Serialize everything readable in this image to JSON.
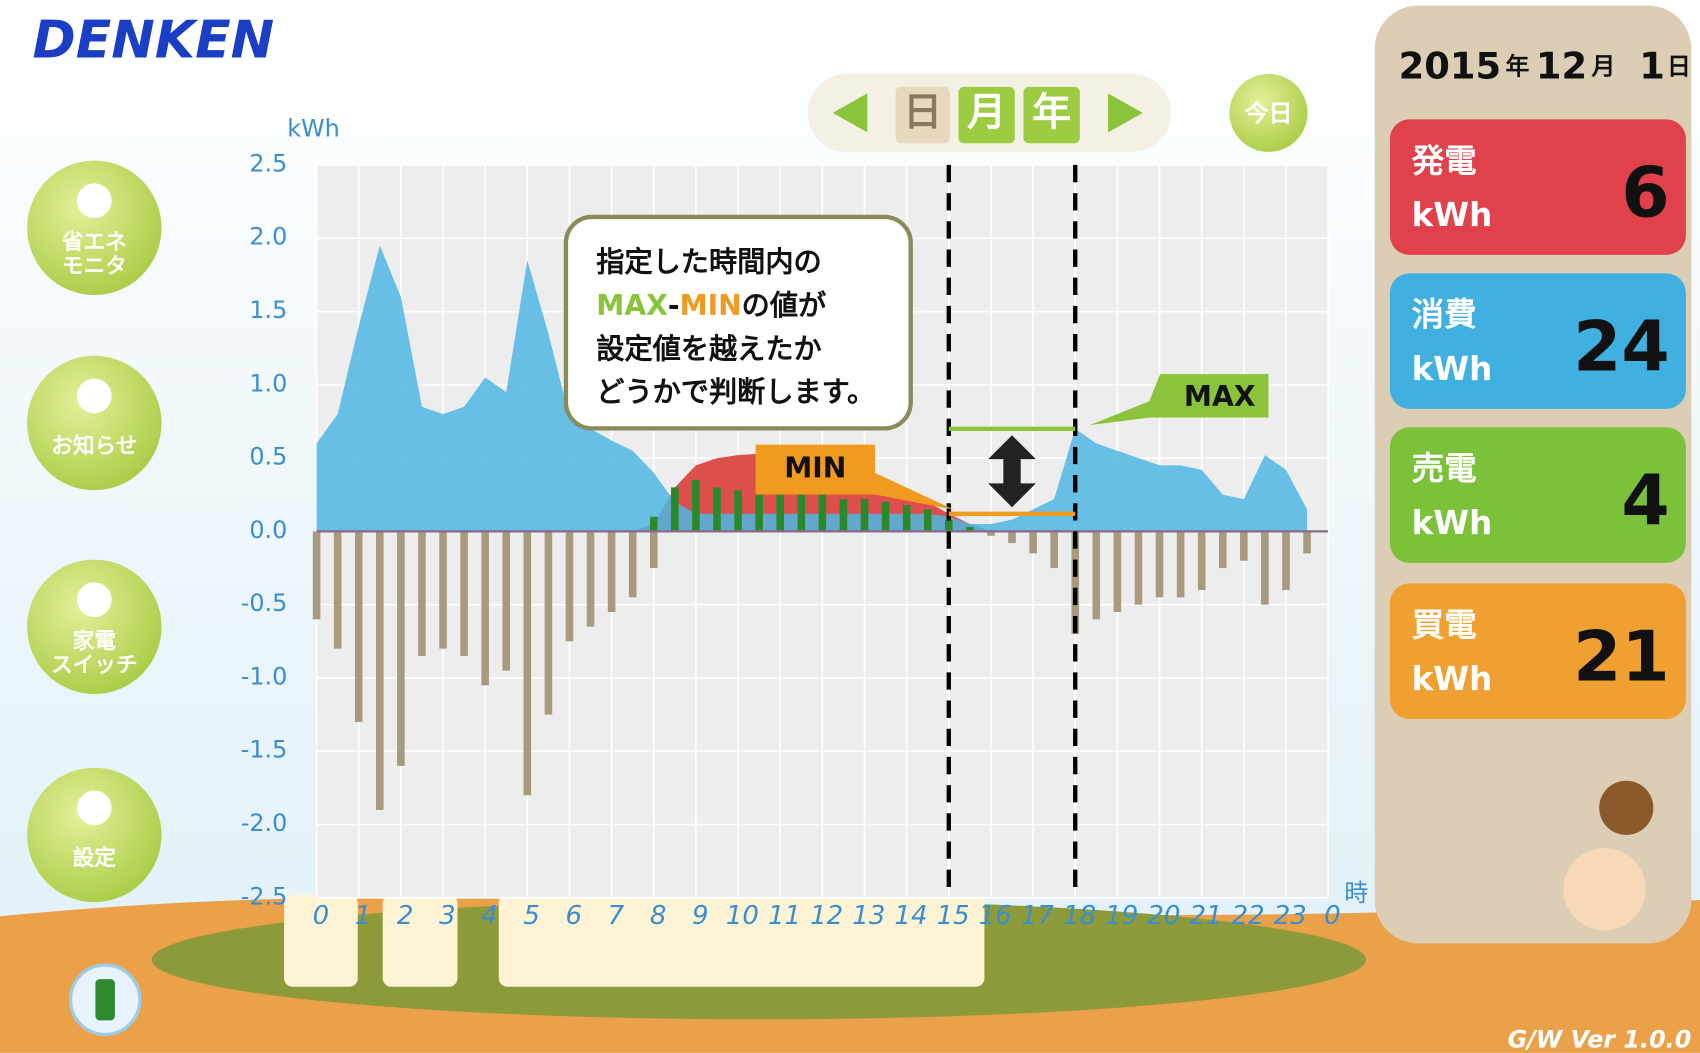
{
  "header": {
    "logo": "DENKEN",
    "version": "G/W Ver 1.0.0"
  },
  "period_nav": {
    "day": "日",
    "month": "月",
    "year": "年",
    "today": "今日"
  },
  "side_menu": {
    "items": [
      "省エネ\nモニタ",
      "お知らせ",
      "家電\nスイッチ",
      "設定"
    ]
  },
  "summary": {
    "date": {
      "year": "2015",
      "year_unit": "年",
      "month": "12",
      "month_unit": "月",
      "day": "1",
      "day_unit": "日"
    },
    "cards": [
      {
        "label": "発電",
        "unit": "kWh",
        "value": 6
      },
      {
        "label": "消費",
        "unit": "kWh",
        "value": 24
      },
      {
        "label": "売電",
        "unit": "kWh",
        "value": 4
      },
      {
        "label": "買電",
        "unit": "kWh",
        "value": 21
      }
    ]
  },
  "chart_data": {
    "type": "combo",
    "y_label": "kWh",
    "x_label": "時",
    "x": [
      0,
      0.5,
      1,
      1.5,
      2,
      2.5,
      3,
      3.5,
      4,
      4.5,
      5,
      5.5,
      6,
      6.5,
      7,
      7.5,
      8,
      8.5,
      9,
      9.5,
      10,
      10.5,
      11,
      11.5,
      12,
      12.5,
      13,
      13.5,
      14,
      14.5,
      15,
      15.5,
      16,
      16.5,
      17,
      17.5,
      18,
      18.5,
      19,
      19.5,
      20,
      20.5,
      21,
      21.5,
      22,
      22.5,
      23,
      23.5
    ],
    "series": [
      {
        "type": "area",
        "color": "#d9322f",
        "values": [
          0,
          0,
          0,
          0,
          0,
          0,
          0,
          0,
          0,
          0,
          0,
          0,
          0,
          0,
          0,
          0,
          0.05,
          0.3,
          0.45,
          0.5,
          0.52,
          0.53,
          0.52,
          0.5,
          0.48,
          0.45,
          0.4,
          0.35,
          0.28,
          0.2,
          0.12,
          0.05,
          0,
          0,
          0,
          0,
          0,
          0,
          0,
          0,
          0,
          0,
          0,
          0,
          0,
          0,
          0,
          0
        ]
      },
      {
        "type": "area",
        "color": "#4fb6e3",
        "values": [
          0.6,
          0.8,
          1.4,
          1.95,
          1.6,
          0.85,
          0.8,
          0.85,
          1.05,
          0.95,
          1.85,
          1.35,
          0.78,
          0.7,
          0.62,
          0.55,
          0.4,
          0.2,
          0.12,
          0.12,
          0.12,
          0.12,
          0.12,
          0.12,
          0.12,
          0.12,
          0.12,
          0.12,
          0.12,
          0.12,
          0.1,
          0.05,
          0.05,
          0.08,
          0.15,
          0.22,
          0.7,
          0.6,
          0.55,
          0.5,
          0.45,
          0.45,
          0.42,
          0.25,
          0.22,
          0.52,
          0.42,
          0.15
        ]
      },
      {
        "type": "bar",
        "color": "#2a8a2a",
        "values": [
          0,
          0,
          0,
          0,
          0,
          0,
          0,
          0,
          0,
          0,
          0,
          0,
          0,
          0,
          0,
          0,
          0.1,
          0.3,
          0.35,
          0.3,
          0.28,
          0.25,
          0.25,
          0.25,
          0.25,
          0.22,
          0.22,
          0.2,
          0.18,
          0.15,
          0.08,
          0.03,
          0,
          0,
          0,
          0,
          0,
          0,
          0,
          0,
          0,
          0,
          0,
          0,
          0,
          0,
          0,
          0
        ]
      },
      {
        "type": "bar",
        "color": "#a89a7e",
        "values": [
          -0.6,
          -0.8,
          -1.3,
          -1.9,
          -1.6,
          -0.85,
          -0.8,
          -0.85,
          -1.05,
          -0.95,
          -1.8,
          -1.25,
          -0.75,
          -0.65,
          -0.55,
          -0.45,
          -0.25,
          0,
          0,
          0,
          0,
          0,
          0,
          0,
          0,
          0,
          0,
          0,
          0,
          0,
          0,
          0,
          -0.03,
          -0.08,
          -0.15,
          -0.25,
          -0.7,
          -0.6,
          -0.55,
          -0.5,
          -0.45,
          -0.45,
          -0.4,
          -0.25,
          -0.2,
          -0.5,
          -0.4,
          -0.15
        ]
      }
    ],
    "xlim": [
      0,
      24
    ],
    "xticks": [
      0,
      1,
      2,
      3,
      4,
      5,
      6,
      7,
      8,
      9,
      10,
      11,
      12,
      13,
      14,
      15,
      16,
      17,
      18,
      19,
      20,
      21,
      22,
      23,
      {
        "value": 24,
        "label": "0"
      }
    ],
    "ylim": [
      -2.5,
      2.5
    ],
    "yticks": [
      2.5,
      {
        "value": 2,
        "label": "2.0"
      },
      1.5,
      {
        "value": 1,
        "label": "1.0"
      },
      0.5,
      {
        "value": 0,
        "label": "0.0"
      },
      -0.5,
      {
        "value": -1,
        "label": "-1.0"
      },
      -1.5,
      {
        "value": -2,
        "label": "-2.0"
      },
      -2.5
    ],
    "grid": true,
    "window": [
      15,
      18
    ],
    "max_level": 0.7,
    "min_level": 0.12,
    "max_label": "MAX",
    "min_label": "MIN",
    "callout": [
      "指定した時間内の",
      "MAX",
      "-",
      "MIN",
      "の値が",
      "設定値を越えたか",
      "どうかで判断します。"
    ]
  }
}
